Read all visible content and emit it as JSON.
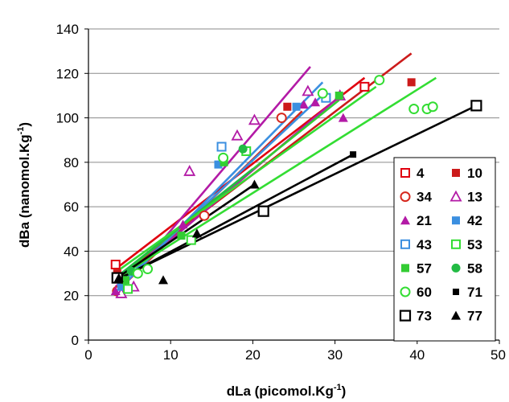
{
  "chart_data": {
    "type": "scatter",
    "xlabel": "dLa (picomol.Kg",
    "xlabel_sup": "-1",
    "xlabel_end": ")",
    "ylabel": "dBa (nanomol.Kg",
    "ylabel_sup": "-1",
    "ylabel_end": ")",
    "xlim": [
      0,
      50
    ],
    "ylim": [
      0,
      140
    ],
    "xticks": [
      "0",
      "10",
      "20",
      "30",
      "40",
      "50"
    ],
    "yticks": [
      "0",
      "20",
      "40",
      "60",
      "80",
      "100",
      "120",
      "140"
    ],
    "grid": "horizontal",
    "legend_position": "bottom-right",
    "series": [
      {
        "name": "4",
        "marker": "square-open",
        "color": "#e0000f",
        "points": [
          [
            3.3,
            34
          ],
          [
            33.6,
            114
          ]
        ],
        "fit": [
          [
            3.3,
            32
          ],
          [
            33.6,
            118
          ]
        ]
      },
      {
        "name": "10",
        "marker": "square-filled",
        "color": "#cc1b1b",
        "points": [
          [
            3.5,
            30
          ],
          [
            24.2,
            105
          ],
          [
            39.3,
            116
          ]
        ],
        "fit": [
          [
            3.5,
            28
          ],
          [
            39.3,
            129
          ]
        ]
      },
      {
        "name": "34",
        "marker": "circle-open",
        "color": "#d6271d",
        "points": [
          [
            3.5,
            22
          ],
          [
            14.1,
            56
          ],
          [
            23.5,
            100
          ]
        ],
        "fit": [
          [
            3.5,
            22
          ],
          [
            26,
            103
          ]
        ]
      },
      {
        "name": "13",
        "marker": "triangle-open",
        "color": "#b31aa6",
        "points": [
          [
            4,
            21
          ],
          [
            5.5,
            24
          ],
          [
            12.3,
            76
          ],
          [
            18.1,
            92
          ],
          [
            20.2,
            99
          ],
          [
            26.7,
            112
          ],
          [
            30.6,
            110
          ]
        ],
        "fit": [
          [
            3.5,
            21
          ],
          [
            27,
            123
          ]
        ]
      },
      {
        "name": "21",
        "marker": "triangle-filled",
        "color": "#b31aa6",
        "points": [
          [
            3.3,
            22
          ],
          [
            11.5,
            52
          ],
          [
            26.2,
            106
          ],
          [
            27.6,
            107
          ],
          [
            31,
            100
          ]
        ],
        "fit": [
          [
            3.3,
            24
          ],
          [
            31,
            111
          ]
        ]
      },
      {
        "name": "42",
        "marker": "square-filled",
        "color": "#3b8fe0",
        "points": [
          [
            4,
            24
          ],
          [
            15.8,
            79
          ],
          [
            25.3,
            105
          ],
          [
            29,
            109
          ]
        ],
        "fit": [
          [
            3.5,
            24
          ],
          [
            29,
            112
          ]
        ]
      },
      {
        "name": "43",
        "marker": "square-open",
        "color": "#3b8fe0",
        "points": [
          [
            16.2,
            87
          ],
          [
            28.9,
            109
          ]
        ],
        "fit": [
          [
            3.5,
            22
          ],
          [
            28.5,
            116
          ]
        ]
      },
      {
        "name": "53",
        "marker": "square-open",
        "color": "#33dd33",
        "points": [
          [
            4.8,
            23
          ],
          [
            12.5,
            45
          ],
          [
            19.2,
            85
          ]
        ],
        "fit": [
          [
            4,
            29
          ],
          [
            42.3,
            118
          ]
        ]
      },
      {
        "name": "57",
        "marker": "square-filled",
        "color": "#33cc33",
        "points": [
          [
            4.5,
            27
          ],
          [
            11.3,
            47
          ],
          [
            16.5,
            80
          ],
          [
            30.5,
            110
          ]
        ],
        "fit": [
          [
            3.5,
            28
          ],
          [
            30.5,
            108
          ]
        ]
      },
      {
        "name": "58",
        "marker": "circle-filled",
        "color": "#22bb44",
        "points": [
          [
            5.2,
            31
          ],
          [
            18.8,
            86
          ]
        ],
        "fit": [
          [
            4,
            30
          ],
          [
            20,
            77
          ]
        ]
      },
      {
        "name": "60",
        "marker": "circle-open",
        "color": "#33dd33",
        "points": [
          [
            6,
            30
          ],
          [
            7.2,
            32
          ],
          [
            16.4,
            82
          ],
          [
            28.5,
            111
          ],
          [
            35.4,
            117
          ],
          [
            39.6,
            104
          ],
          [
            41.2,
            104
          ],
          [
            41.9,
            105
          ]
        ],
        "fit": [
          [
            3.5,
            31
          ],
          [
            35,
            114
          ]
        ]
      },
      {
        "name": "71",
        "marker": "square-filled-small",
        "color": "#000000",
        "points": [
          [
            3.5,
            27
          ],
          [
            32.2,
            83.5
          ]
        ],
        "fit": [
          [
            3.5,
            27
          ],
          [
            32.2,
            83.5
          ]
        ]
      },
      {
        "name": "73",
        "marker": "square-open-large",
        "color": "#000000",
        "points": [
          [
            3.5,
            28
          ],
          [
            21.3,
            58
          ],
          [
            47.2,
            105.5
          ]
        ],
        "fit": [
          [
            3.3,
            27
          ],
          [
            47.2,
            105.5
          ]
        ]
      },
      {
        "name": "77",
        "marker": "triangle-filled",
        "color": "#000000",
        "points": [
          [
            3.7,
            28
          ],
          [
            9.1,
            27
          ],
          [
            13.2,
            48
          ],
          [
            20.2,
            70
          ]
        ],
        "fit": [
          [
            3.5,
            28
          ],
          [
            20.2,
            70
          ]
        ]
      }
    ]
  }
}
